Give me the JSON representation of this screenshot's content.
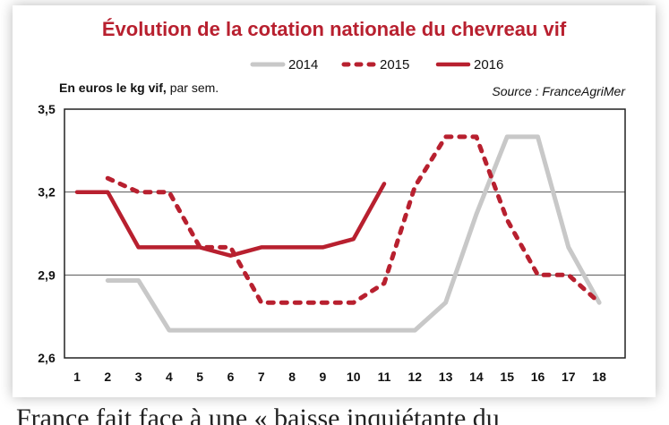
{
  "chart_data": {
    "type": "line",
    "title": "Évolution de la cotation nationale du chevreau vif",
    "ylabel_bold": "En euros le kg vif,",
    "ylabel_rest": " par sem.",
    "source": "Source : FranceAgriMer",
    "x": [
      1,
      2,
      3,
      4,
      5,
      6,
      7,
      8,
      9,
      10,
      11,
      12,
      13,
      14,
      15,
      16,
      17,
      18
    ],
    "ylim": [
      2.6,
      3.5
    ],
    "yticks": [
      "2,6",
      "2,9",
      "3,2",
      "3,5"
    ],
    "ytick_values": [
      2.6,
      2.9,
      3.2,
      3.5
    ],
    "grid": true,
    "legend_position": "top-center",
    "series": [
      {
        "name": "2014",
        "color": "#c8c8c8",
        "style": "solid",
        "points": [
          [
            2,
            2.88
          ],
          [
            3,
            2.88
          ],
          [
            4,
            2.7
          ],
          [
            5,
            2.7
          ],
          [
            6,
            2.7
          ],
          [
            7,
            2.7
          ],
          [
            8,
            2.7
          ],
          [
            9,
            2.7
          ],
          [
            10,
            2.7
          ],
          [
            11,
            2.7
          ],
          [
            12,
            2.7
          ],
          [
            13,
            2.8
          ],
          [
            14,
            3.12
          ],
          [
            15,
            3.4
          ],
          [
            16,
            3.4
          ],
          [
            17,
            3.0
          ],
          [
            18,
            2.8
          ]
        ]
      },
      {
        "name": "2015",
        "color": "#b8202f",
        "style": "dotted",
        "points": [
          [
            2,
            3.25
          ],
          [
            3,
            3.2
          ],
          [
            4,
            3.2
          ],
          [
            5,
            3.0
          ],
          [
            6,
            3.0
          ],
          [
            7,
            2.8
          ],
          [
            8,
            2.8
          ],
          [
            9,
            2.8
          ],
          [
            10,
            2.8
          ],
          [
            11,
            2.87
          ],
          [
            12,
            3.22
          ],
          [
            13,
            3.4
          ],
          [
            14,
            3.4
          ],
          [
            15,
            3.1
          ],
          [
            16,
            2.9
          ],
          [
            17,
            2.9
          ],
          [
            18,
            2.8
          ]
        ]
      },
      {
        "name": "2016",
        "color": "#b8202f",
        "style": "solid",
        "points": [
          [
            1,
            3.2
          ],
          [
            2,
            3.2
          ],
          [
            3,
            3.0
          ],
          [
            4,
            3.0
          ],
          [
            5,
            3.0
          ],
          [
            6,
            2.97
          ],
          [
            7,
            3.0
          ],
          [
            8,
            3.0
          ],
          [
            9,
            3.0
          ],
          [
            10,
            3.03
          ],
          [
            11,
            3.23
          ]
        ]
      }
    ]
  },
  "caption": "France fait face à une « baisse inquiétante du"
}
